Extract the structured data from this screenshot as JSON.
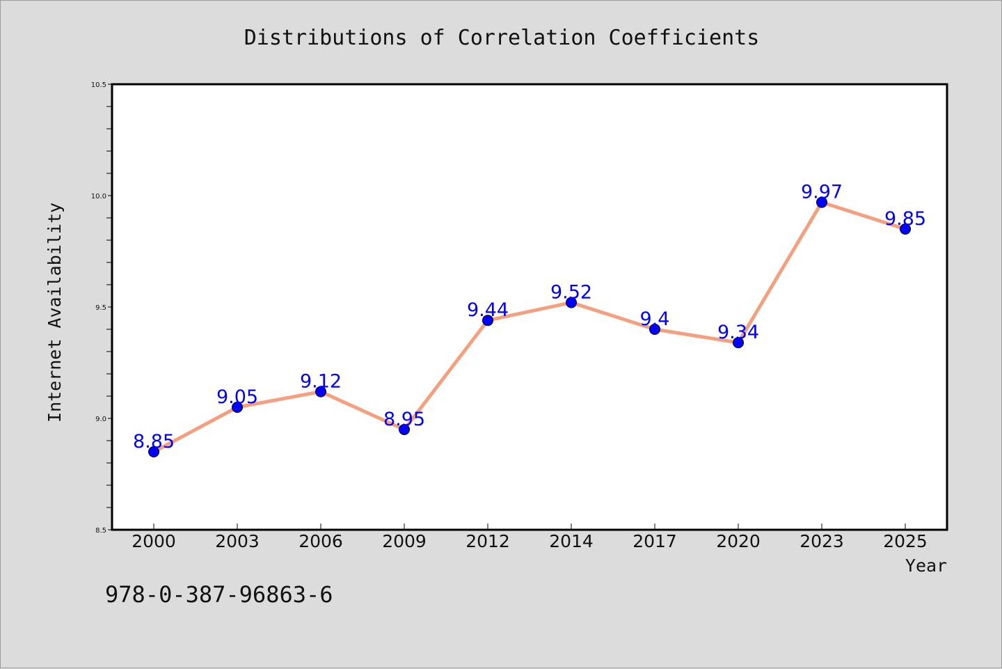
{
  "chart_data": {
    "type": "line",
    "title": "Distributions of Correlation Coefficients",
    "xlabel": "Year",
    "ylabel": "Internet Availability",
    "categories": [
      "2000",
      "2003",
      "2006",
      "2009",
      "2012",
      "2014",
      "2017",
      "2020",
      "2023",
      "2025"
    ],
    "series": [
      {
        "values": [
          8.85,
          9.05,
          9.12,
          8.95,
          9.44,
          9.52,
          9.4,
          9.34,
          9.97,
          9.85
        ],
        "labels": [
          "8.85",
          "9.05",
          "9.12",
          "8.95",
          "9.44",
          "9.52",
          "9.4",
          "9.34",
          "9.97",
          "9.85"
        ]
      }
    ],
    "ylim": [
      8.5,
      10.5
    ],
    "yticks": [
      "8.5",
      "9.0",
      "9.5",
      "10.0",
      "10.5"
    ],
    "grid": false,
    "legend": "none",
    "colors": {
      "line": "#f4a07f",
      "marker": "#0000ff",
      "data_label": "#0000ff",
      "background": "#dcdcdc",
      "plot_background": "#ffffff"
    },
    "annotation": "978-0-387-96863-6"
  }
}
